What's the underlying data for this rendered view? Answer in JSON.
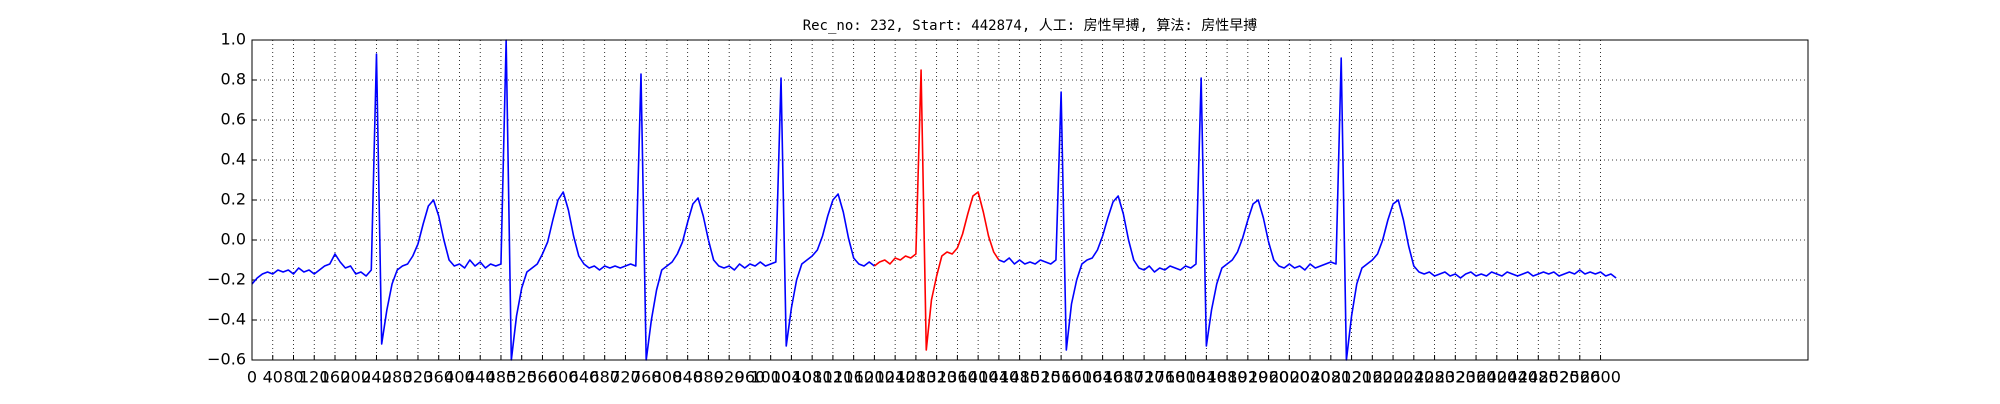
{
  "chart_data": {
    "type": "line",
    "title": "Rec_no: 232, Start: 442874, 人工: 房性早搏, 算法: 房性早搏",
    "grid": true,
    "xlim": [
      0,
      3000
    ],
    "ylim": [
      -0.6,
      1.0
    ],
    "xticks": [
      0,
      40,
      80,
      120,
      160,
      200,
      240,
      280,
      320,
      360,
      400,
      440,
      480,
      520,
      560,
      600,
      640,
      680,
      720,
      760,
      800,
      840,
      880,
      920,
      960,
      1000,
      1040,
      1080,
      1120,
      1160,
      1200,
      1240,
      1280,
      1320,
      1360,
      1400,
      1440,
      1480,
      1520,
      1560,
      1600,
      1640,
      1680,
      1720,
      1760,
      1800,
      1840,
      1880,
      1920,
      1960,
      2000,
      2040,
      2080,
      2120,
      2160,
      2200,
      2240,
      2280,
      2320,
      2360,
      2400,
      2440,
      2480,
      2520,
      2560,
      2600
    ],
    "yticks": [
      {
        "value": -0.6,
        "label": "−0.6"
      },
      {
        "value": -0.4,
        "label": "−0.4"
      },
      {
        "value": -0.2,
        "label": "−0.2"
      },
      {
        "value": 0,
        "label": "0.0"
      },
      0.2,
      0.4,
      0.6,
      0.8,
      {
        "value": 1,
        "label": "1.0"
      }
    ],
    "x": [
      0,
      10,
      20,
      30,
      40,
      50,
      60,
      70,
      80,
      90,
      100,
      110,
      120,
      130,
      140,
      150,
      160,
      170,
      180,
      190,
      200,
      210,
      220,
      230,
      240,
      250,
      260,
      270,
      280,
      290,
      300,
      310,
      320,
      330,
      340,
      350,
      360,
      370,
      380,
      390,
      400,
      410,
      420,
      430,
      440,
      450,
      460,
      470,
      480,
      490,
      500,
      510,
      520,
      530,
      540,
      550,
      560,
      570,
      580,
      590,
      600,
      610,
      620,
      630,
      640,
      650,
      660,
      670,
      680,
      690,
      700,
      710,
      720,
      730,
      740,
      750,
      760,
      770,
      780,
      790,
      800,
      810,
      820,
      830,
      840,
      850,
      860,
      870,
      880,
      890,
      900,
      910,
      920,
      930,
      940,
      950,
      960,
      970,
      980,
      990,
      1000,
      1010,
      1020,
      1030,
      1040,
      1050,
      1060,
      1070,
      1080,
      1090,
      1100,
      1110,
      1120,
      1130,
      1140,
      1150,
      1160,
      1170,
      1180,
      1190,
      1200,
      1210,
      1220,
      1230,
      1240,
      1250,
      1260,
      1270,
      1280,
      1290,
      1300,
      1310,
      1320,
      1330,
      1340,
      1350,
      1360,
      1370,
      1380,
      1390,
      1400,
      1410,
      1420,
      1430,
      1440,
      1450,
      1460,
      1470,
      1480,
      1490,
      1500,
      1510,
      1520,
      1530,
      1540,
      1550,
      1560,
      1570,
      1580,
      1590,
      1600,
      1610,
      1620,
      1630,
      1640,
      1650,
      1660,
      1670,
      1680,
      1690,
      1700,
      1710,
      1720,
      1730,
      1740,
      1750,
      1760,
      1770,
      1780,
      1790,
      1800,
      1810,
      1820,
      1830,
      1840,
      1850,
      1860,
      1870,
      1880,
      1890,
      1900,
      1910,
      1920,
      1930,
      1940,
      1950,
      1960,
      1970,
      1980,
      1990,
      2000,
      2010,
      2020,
      2030,
      2040,
      2050,
      2060,
      2070,
      2080,
      2090,
      2100,
      2110,
      2120,
      2130,
      2140,
      2150,
      2160,
      2170,
      2180,
      2190,
      2200,
      2210,
      2220,
      2230,
      2240,
      2250,
      2260,
      2270,
      2280,
      2290,
      2300,
      2310,
      2320,
      2330,
      2340,
      2350,
      2360,
      2370,
      2380,
      2390,
      2400,
      2410,
      2420,
      2430,
      2440,
      2450,
      2460,
      2470,
      2480,
      2490,
      2500,
      2510,
      2520,
      2530,
      2540,
      2550,
      2560,
      2570,
      2580,
      2590,
      2600,
      2610,
      2620,
      2630
    ],
    "series": [
      {
        "color": "#0000ff",
        "values": [
          -0.22,
          -0.19,
          -0.17,
          -0.16,
          -0.17,
          -0.15,
          -0.16,
          -0.15,
          -0.17,
          -0.14,
          -0.16,
          -0.15,
          -0.17,
          -0.15,
          -0.13,
          -0.12,
          -0.07,
          -0.11,
          -0.14,
          -0.13,
          -0.17,
          -0.16,
          -0.18,
          -0.15,
          0.93,
          -0.52,
          -0.35,
          -0.22,
          -0.15,
          -0.13,
          -0.12,
          -0.08,
          -0.02,
          0.08,
          0.17,
          0.2,
          0.12,
          0.0,
          -0.1,
          -0.13,
          -0.12,
          -0.14,
          -0.1,
          -0.13,
          -0.11,
          -0.14,
          -0.12,
          -0.13,
          -0.12,
          1.0,
          -0.6,
          -0.38,
          -0.24,
          -0.16,
          -0.14,
          -0.12,
          -0.07,
          -0.01,
          0.1,
          0.2,
          0.24,
          0.15,
          0.02,
          -0.08,
          -0.12,
          -0.14,
          -0.13,
          -0.15,
          -0.13,
          -0.14,
          -0.13,
          -0.14,
          -0.13,
          -0.12,
          -0.13,
          0.83,
          -0.6,
          -0.4,
          -0.25,
          -0.15,
          -0.13,
          -0.11,
          -0.07,
          -0.01,
          0.09,
          0.18,
          0.21,
          0.12,
          0.0,
          -0.1,
          -0.13,
          -0.14,
          -0.13,
          -0.15,
          -0.12,
          -0.14,
          -0.12,
          -0.13,
          -0.11,
          -0.13,
          -0.12,
          -0.11,
          0.81,
          -0.53,
          -0.34,
          -0.2,
          -0.12,
          -0.1,
          -0.08,
          -0.05,
          0.02,
          0.12,
          0.2,
          0.23,
          0.14,
          0.01,
          -0.09,
          -0.12,
          -0.13,
          -0.11,
          -0.13,
          null,
          null,
          null,
          null,
          null,
          null,
          null,
          null,
          null,
          null,
          null,
          null,
          null,
          null,
          null,
          null,
          null,
          null,
          null,
          null,
          null,
          null,
          null,
          -0.1,
          -0.11,
          -0.09,
          -0.12,
          -0.1,
          -0.12,
          -0.11,
          -0.12,
          -0.1,
          -0.11,
          -0.12,
          -0.1,
          0.74,
          -0.55,
          -0.32,
          -0.2,
          -0.12,
          -0.1,
          -0.09,
          -0.05,
          0.02,
          0.11,
          0.19,
          0.22,
          0.13,
          0.0,
          -0.1,
          -0.14,
          -0.15,
          -0.13,
          -0.16,
          -0.14,
          -0.15,
          -0.13,
          -0.14,
          -0.15,
          -0.13,
          -0.14,
          -0.12,
          0.81,
          -0.53,
          -0.35,
          -0.22,
          -0.14,
          -0.12,
          -0.1,
          -0.06,
          0.01,
          0.1,
          0.18,
          0.2,
          0.11,
          -0.01,
          -0.1,
          -0.13,
          -0.14,
          -0.12,
          -0.14,
          -0.13,
          -0.15,
          -0.12,
          -0.14,
          -0.13,
          -0.12,
          -0.11,
          -0.12,
          0.91,
          -0.6,
          -0.38,
          -0.22,
          -0.14,
          -0.12,
          -0.1,
          -0.07,
          0.0,
          0.1,
          0.18,
          0.2,
          0.1,
          -0.03,
          -0.13,
          -0.16,
          -0.17,
          -0.16,
          -0.18,
          -0.17,
          -0.16,
          -0.18,
          -0.17,
          -0.19,
          -0.17,
          -0.16,
          -0.18,
          -0.17,
          -0.18,
          -0.16,
          -0.17,
          -0.18,
          -0.16,
          -0.17,
          -0.18,
          -0.17,
          -0.16,
          -0.18,
          -0.17,
          -0.16,
          -0.17,
          -0.16,
          -0.18,
          -0.17,
          -0.16,
          -0.17,
          -0.15,
          -0.17,
          -0.16,
          -0.17,
          -0.16,
          -0.18,
          -0.17,
          -0.19
        ]
      },
      {
        "color": "#ff0000",
        "values": [
          null,
          null,
          null,
          null,
          null,
          null,
          null,
          null,
          null,
          null,
          null,
          null,
          null,
          null,
          null,
          null,
          null,
          null,
          null,
          null,
          null,
          null,
          null,
          null,
          null,
          null,
          null,
          null,
          null,
          null,
          null,
          null,
          null,
          null,
          null,
          null,
          null,
          null,
          null,
          null,
          null,
          null,
          null,
          null,
          null,
          null,
          null,
          null,
          null,
          null,
          null,
          null,
          null,
          null,
          null,
          null,
          null,
          null,
          null,
          null,
          null,
          null,
          null,
          null,
          null,
          null,
          null,
          null,
          null,
          null,
          null,
          null,
          null,
          null,
          null,
          null,
          null,
          null,
          null,
          null,
          null,
          null,
          null,
          null,
          null,
          null,
          null,
          null,
          null,
          null,
          null,
          null,
          null,
          null,
          null,
          null,
          null,
          null,
          null,
          null,
          null,
          null,
          null,
          null,
          null,
          null,
          null,
          null,
          null,
          null,
          null,
          null,
          null,
          null,
          null,
          null,
          null,
          null,
          null,
          null,
          -0.13,
          -0.11,
          -0.1,
          -0.12,
          -0.09,
          -0.1,
          -0.08,
          -0.09,
          -0.07,
          0.85,
          -0.55,
          -0.3,
          -0.18,
          -0.08,
          -0.06,
          -0.07,
          -0.04,
          0.03,
          0.13,
          0.22,
          0.24,
          0.14,
          0.02,
          -0.06,
          -0.1,
          null,
          null,
          null,
          null,
          null,
          null,
          null,
          null,
          null,
          null,
          null,
          null,
          null,
          null,
          null,
          null,
          null,
          null,
          null,
          null,
          null,
          null,
          null,
          null,
          null,
          null,
          null,
          null,
          null,
          null,
          null,
          null,
          null,
          null,
          null,
          null,
          null,
          null,
          null,
          null,
          null,
          null,
          null,
          null,
          null,
          null,
          null,
          null,
          null,
          null,
          null,
          null,
          null,
          null,
          null,
          null,
          null,
          null,
          null,
          null,
          null,
          null,
          null,
          null,
          null,
          null,
          null,
          null,
          null,
          null,
          null,
          null,
          null,
          null,
          null,
          null,
          null,
          null,
          null,
          null,
          null,
          null,
          null,
          null,
          null,
          null,
          null,
          null,
          null,
          null,
          null,
          null,
          null,
          null,
          null,
          null,
          null,
          null,
          null,
          null,
          null,
          null,
          null,
          null,
          null,
          null,
          null,
          null,
          null,
          null,
          null,
          null,
          null,
          null,
          null,
          null,
          null,
          null,
          null
        ]
      }
    ]
  }
}
